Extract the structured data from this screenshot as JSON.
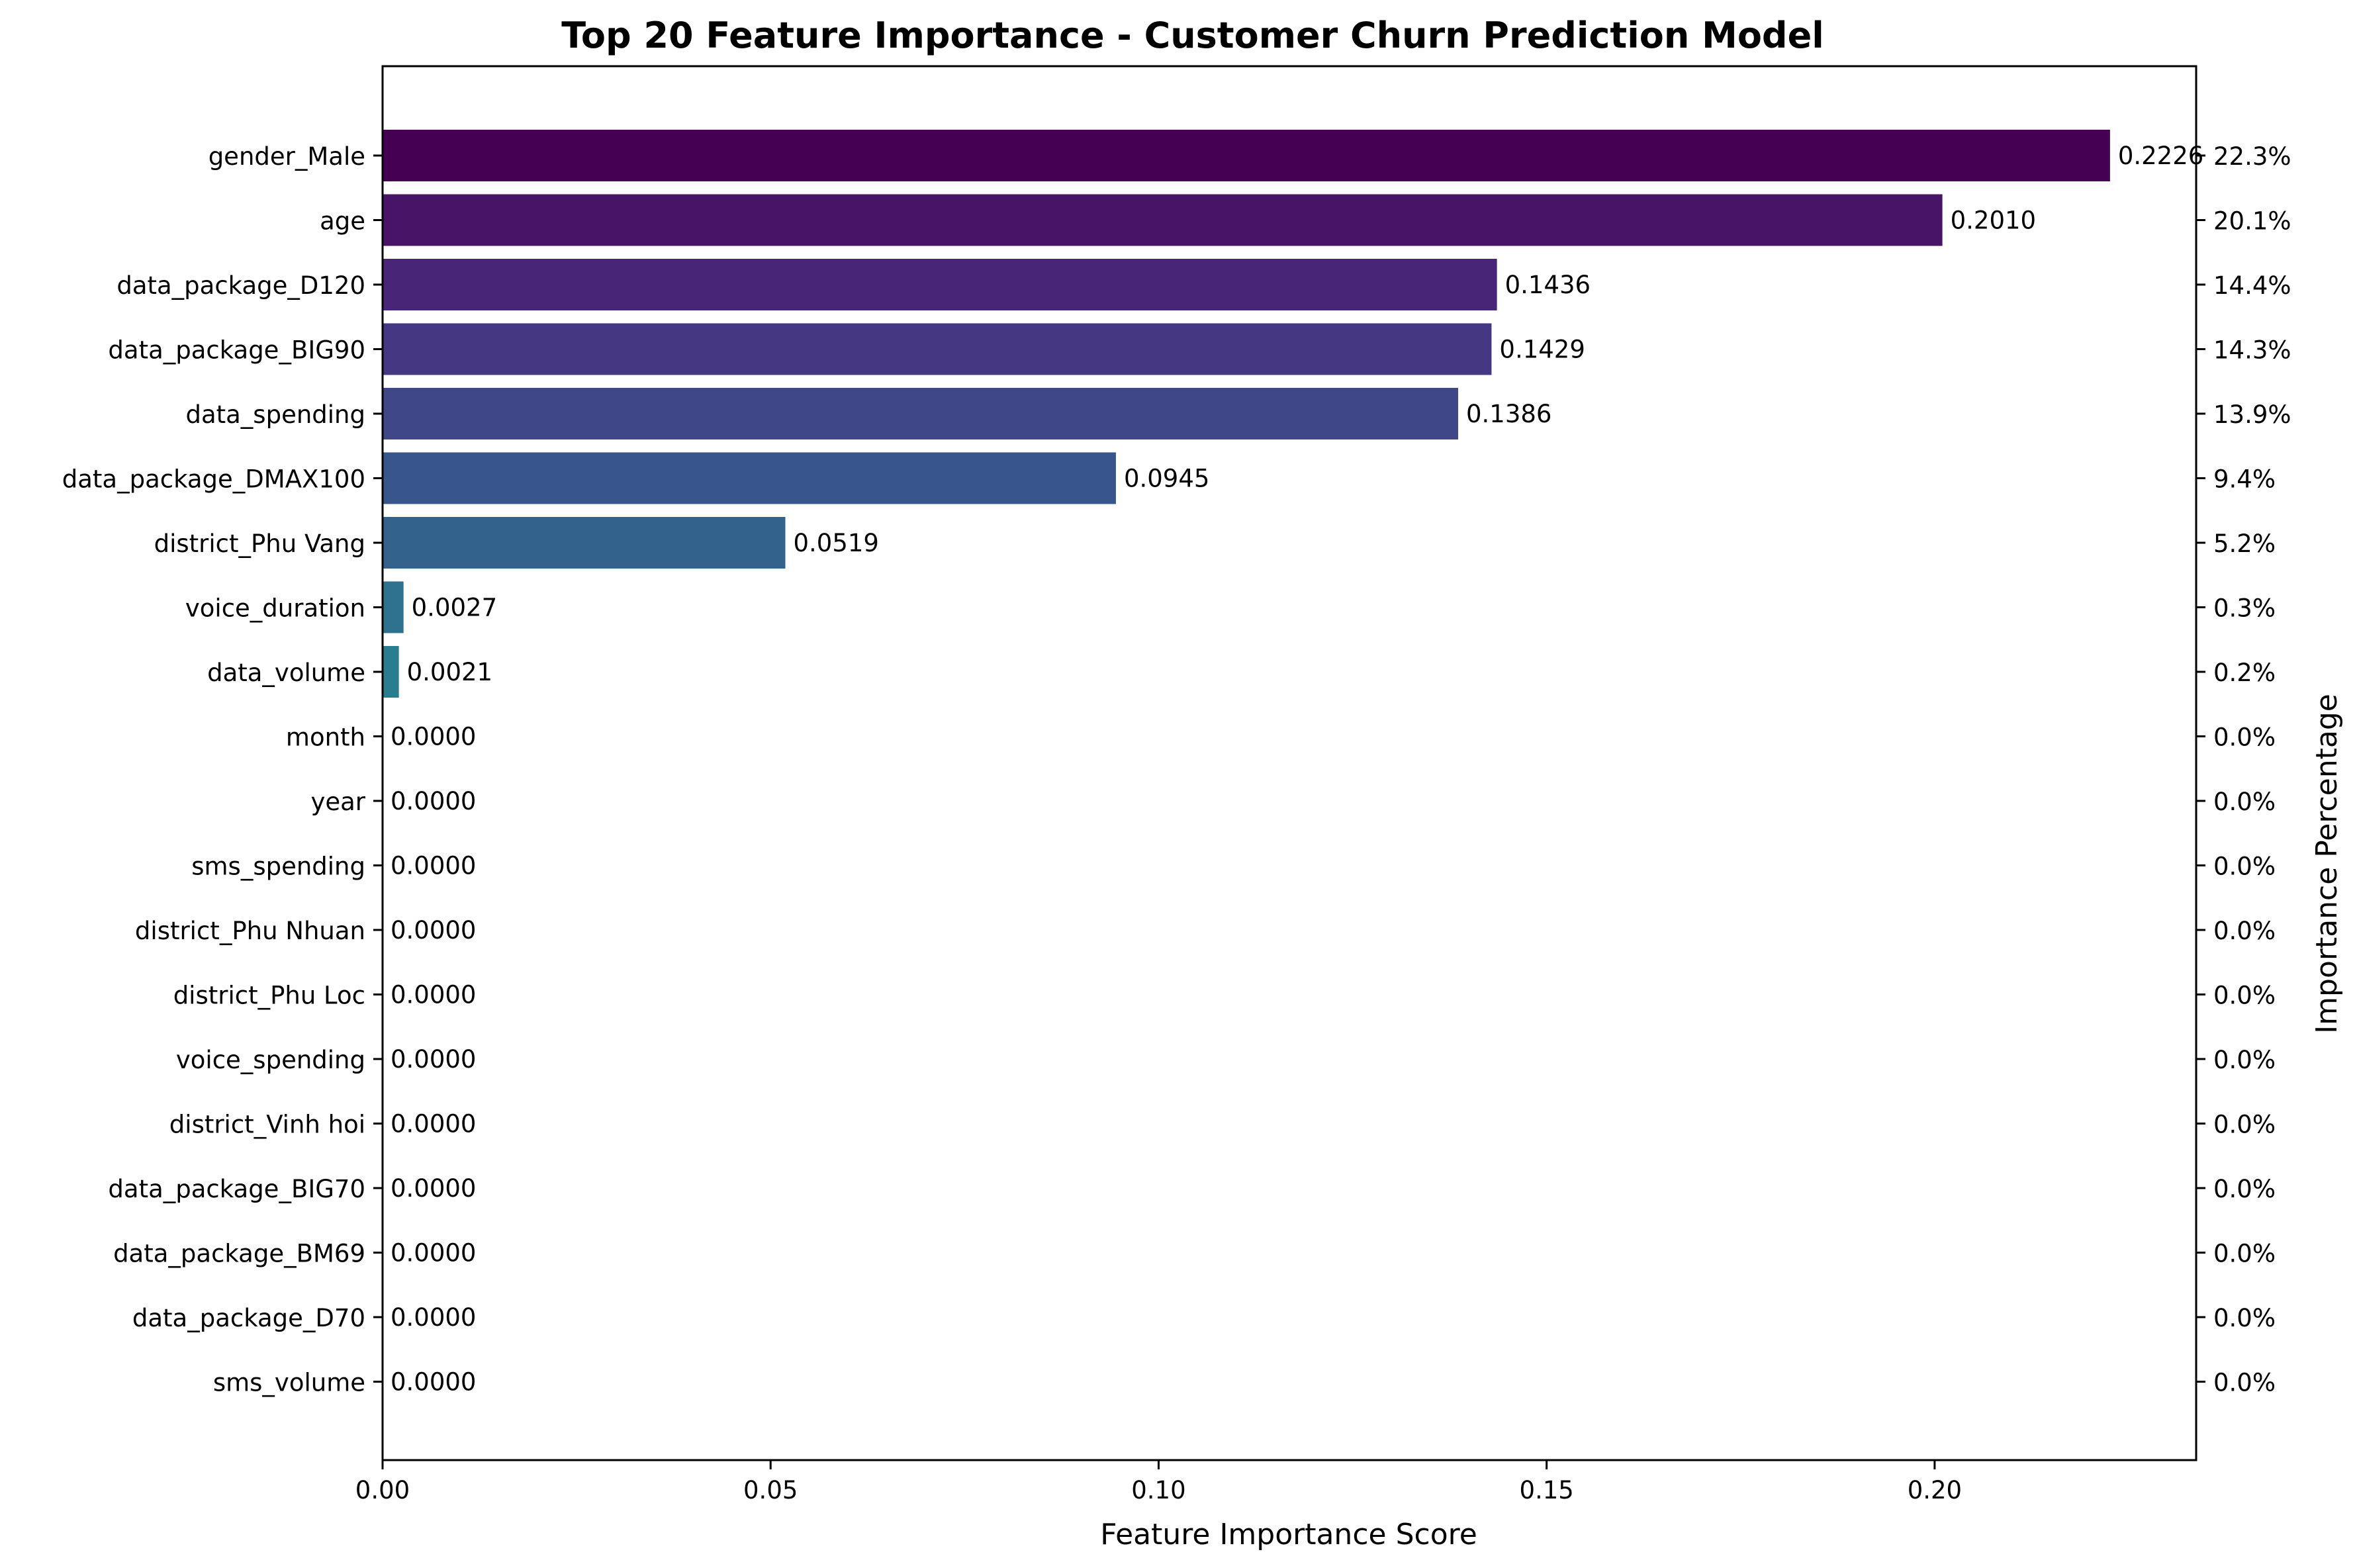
{
  "chart_data": {
    "type": "bar",
    "orientation": "horizontal",
    "title": "Top 20 Feature Importance - Customer Churn Prediction Model",
    "xlabel": "Feature Importance Score",
    "ylabel_right": "Importance Percentage",
    "xlim": [
      0,
      0.2337
    ],
    "x_ticks": [
      0.0,
      0.05,
      0.1,
      0.15,
      0.2
    ],
    "x_tick_labels": [
      "0.00",
      "0.05",
      "0.10",
      "0.15",
      "0.20"
    ],
    "grid": false,
    "colormap": "viridis",
    "categories": [
      "gender_Male",
      "age",
      "data_package_D120",
      "data_package_BIG90",
      "data_spending",
      "data_package_DMAX100",
      "district_Phu Vang",
      "voice_duration",
      "data_volume",
      "month",
      "year",
      "sms_spending",
      "district_Phu Nhuan",
      "district_Phu Loc",
      "voice_spending",
      "district_Vinh hoi",
      "data_package_BIG70",
      "data_package_BM69",
      "data_package_D70",
      "sms_volume"
    ],
    "values": [
      0.2226,
      0.201,
      0.1436,
      0.1429,
      0.1386,
      0.0945,
      0.0519,
      0.0027,
      0.0021,
      0.0,
      0.0,
      0.0,
      0.0,
      0.0,
      0.0,
      0.0,
      0.0,
      0.0,
      0.0,
      0.0
    ],
    "value_labels": [
      "0.2226",
      "0.2010",
      "0.1436",
      "0.1429",
      "0.1386",
      "0.0945",
      "0.0519",
      "0.0027",
      "0.0021",
      "0.0000",
      "0.0000",
      "0.0000",
      "0.0000",
      "0.0000",
      "0.0000",
      "0.0000",
      "0.0000",
      "0.0000",
      "0.0000",
      "0.0000"
    ],
    "percent_labels": [
      "22.3%",
      "20.1%",
      "14.4%",
      "14.3%",
      "13.9%",
      "9.4%",
      "5.2%",
      "0.3%",
      "0.2%",
      "0.0%",
      "0.0%",
      "0.0%",
      "0.0%",
      "0.0%",
      "0.0%",
      "0.0%",
      "0.0%",
      "0.0%",
      "0.0%",
      "0.0%"
    ],
    "colors": [
      "#440154",
      "#481467",
      "#482576",
      "#453781",
      "#3f4788",
      "#39568c",
      "#33638d",
      "#2d718e",
      "#287d8e",
      "#238a8d",
      "#1f968b",
      "#20a386",
      "#29af7f",
      "#3dbc74",
      "#56c667",
      "#75d054",
      "#95d840",
      "#bade28",
      "#dde318",
      "#fde725"
    ]
  }
}
